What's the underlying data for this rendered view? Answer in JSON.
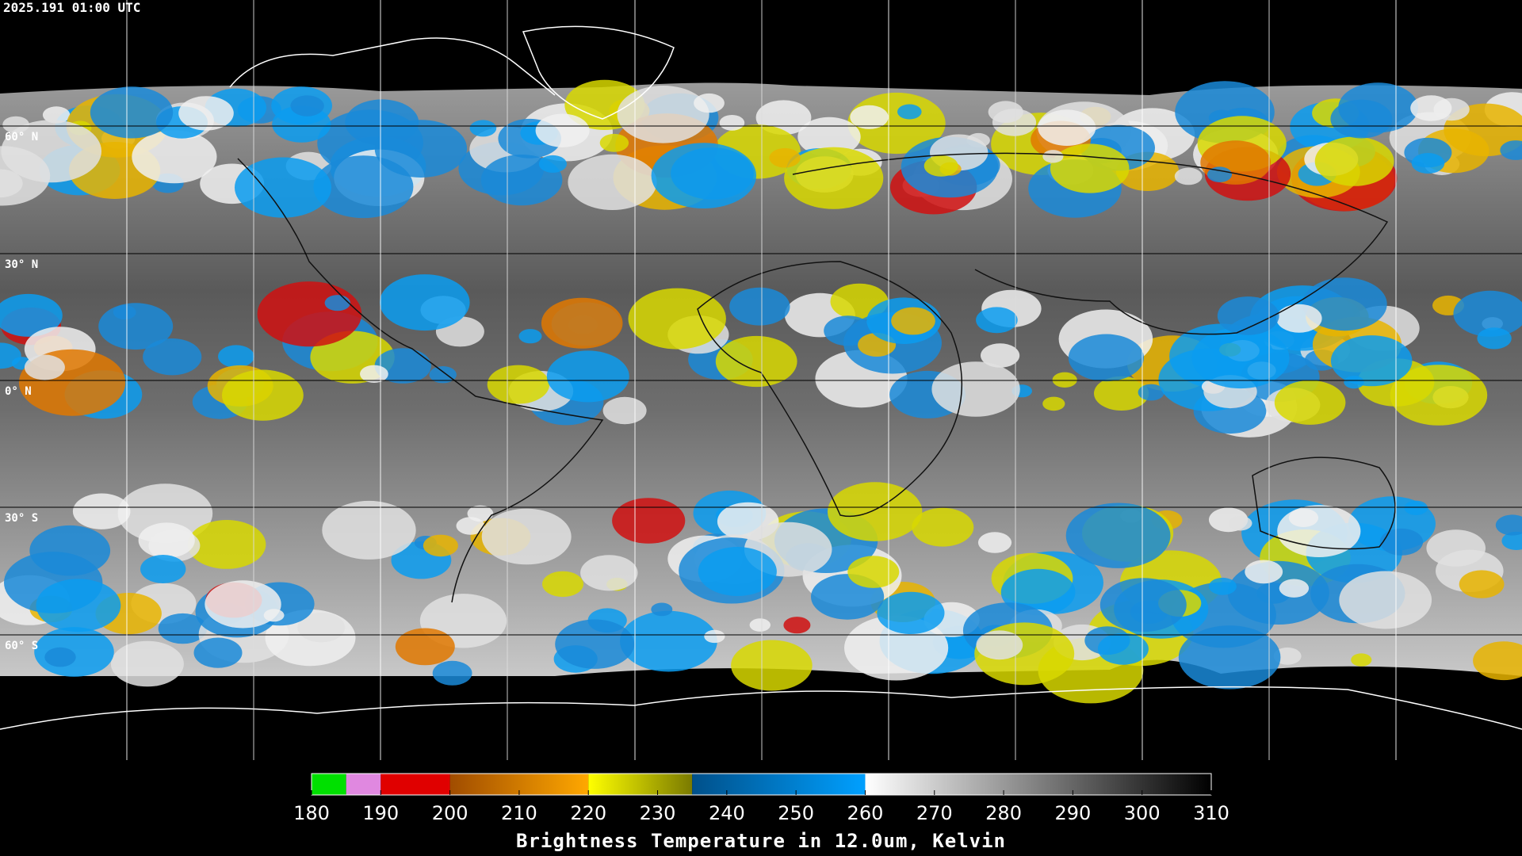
{
  "timestamp": "2025.191 01:00 UTC",
  "latitude_labels": [
    "60° N",
    "30° N",
    "0° N",
    "30° S",
    "60° S"
  ],
  "colorbar": {
    "title": "Brightness Temperature in 12.0um, Kelvin",
    "range": [
      180,
      310
    ],
    "ticks": [
      180,
      190,
      200,
      210,
      220,
      230,
      240,
      250,
      260,
      270,
      280,
      290,
      300,
      310
    ],
    "segments": [
      {
        "from": 180,
        "to": 185,
        "colors": [
          "#00e000",
          "#00e000"
        ]
      },
      {
        "from": 185,
        "to": 190,
        "colors": [
          "#e088e0",
          "#e088e0"
        ]
      },
      {
        "from": 190,
        "to": 200,
        "colors": [
          "#e00000",
          "#e00000"
        ]
      },
      {
        "from": 200,
        "to": 220,
        "colors": [
          "#a04c00",
          "#ffa800"
        ]
      },
      {
        "from": 220,
        "to": 235,
        "colors": [
          "#ffff00",
          "#7a7a00"
        ]
      },
      {
        "from": 235,
        "to": 260,
        "colors": [
          "#00508a",
          "#00a0ff"
        ]
      },
      {
        "from": 260,
        "to": 310,
        "colors": [
          "#ffffff",
          "#000000"
        ]
      }
    ]
  }
}
